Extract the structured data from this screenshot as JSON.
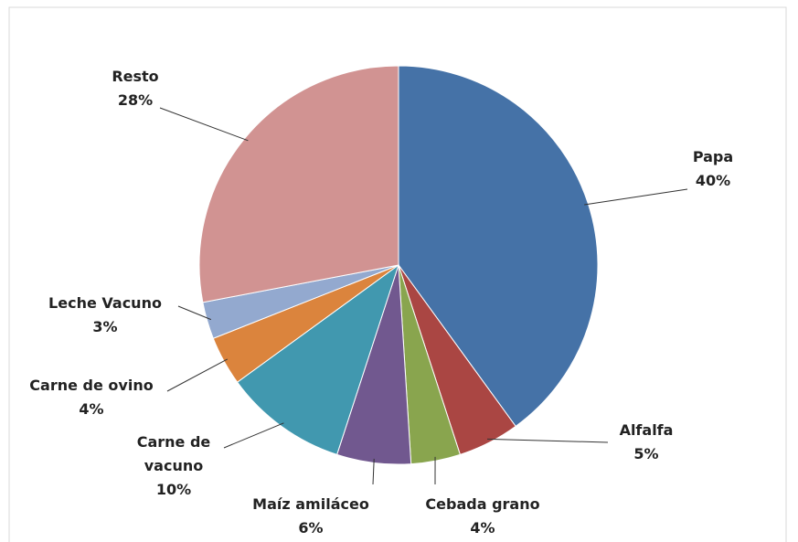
{
  "chart_data": {
    "type": "pie",
    "categories": [
      "Papa",
      "Alfalfa",
      "Cebada grano",
      "Maíz amiláceo",
      "Carne de vacuno",
      "Carne de ovino",
      "Leche Vacuno",
      "Resto"
    ],
    "values": [
      40,
      5,
      4,
      6,
      10,
      4,
      3,
      28
    ],
    "value_labels": [
      "40%",
      "5%",
      "4%",
      "6%",
      "10%",
      "4%",
      "3%",
      "28%"
    ],
    "colors": [
      "#4572a7",
      "#aa4643",
      "#89a54e",
      "#71588f",
      "#4198af",
      "#db843d",
      "#93a9cf",
      "#d19392"
    ]
  }
}
